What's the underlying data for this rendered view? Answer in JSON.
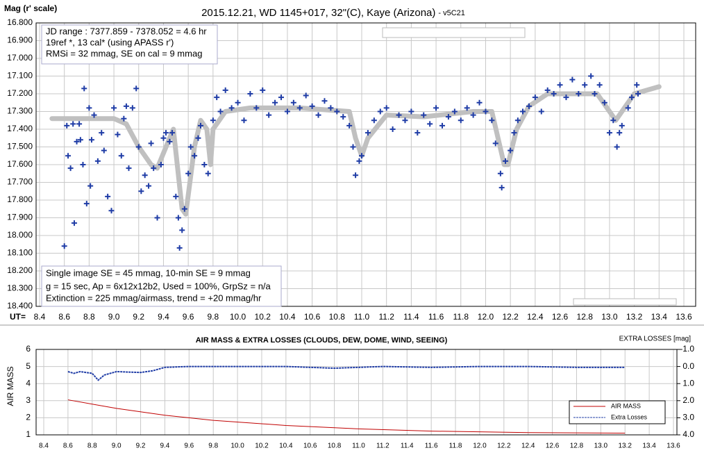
{
  "chart_data": [
    {
      "type": "scatter",
      "title": "2015.12.21, WD 1145+017, 32\"(C), Kaye (Arizona)",
      "title_suffix": "- v5C21",
      "ylabel": "Mag (r' scale)",
      "xlabel": "UT=",
      "annotations": [
        [
          "JD range : 7377.859 - 7378.052 = 4.6 hr",
          " 19ref *, 13 cal* (using APASS r')",
          "RMSi = 32 mmag, SE on cal = 9 mmag"
        ],
        [
          "Single image SE = 45 mmag, 10-min SE = 9 mmag",
          "g = 15 sec, Ap = 6x12x12b2, Used = 100%, GrpSz = n/a",
          "Extinction = 225 mmag/airmass, trend = +20 mmag/hr"
        ]
      ],
      "xlim": [
        8.4,
        13.6
      ],
      "ylim": [
        16.8,
        18.4
      ],
      "y_inverted": true,
      "grid": true,
      "xticks": [
        8.4,
        8.6,
        8.8,
        {
          "value": 9,
          "label": "9.0"
        },
        9.2,
        9.4,
        9.6,
        9.8,
        {
          "value": 10,
          "label": "10.0"
        },
        10.2,
        10.4,
        10.6,
        10.8,
        {
          "value": 11,
          "label": "11.0"
        },
        11.2,
        11.4,
        11.6,
        11.8,
        {
          "value": 12,
          "label": "12.0"
        },
        12.2,
        12.4,
        12.6,
        12.8,
        {
          "value": 13,
          "label": "13.0"
        },
        13.2,
        13.4,
        13.6
      ],
      "yticks": [
        {
          "value": 16.8,
          "label": "16.800"
        },
        {
          "value": 16.9,
          "label": "16.900"
        },
        {
          "value": 17,
          "label": "17.000"
        },
        {
          "value": 17.1,
          "label": "17.100"
        },
        {
          "value": 17.2,
          "label": "17.200"
        },
        {
          "value": 17.3,
          "label": "17.300"
        },
        {
          "value": 17.4,
          "label": "17.400"
        },
        {
          "value": 17.5,
          "label": "17.500"
        },
        {
          "value": 17.6,
          "label": "17.600"
        },
        {
          "value": 17.7,
          "label": "17.700"
        },
        {
          "value": 17.8,
          "label": "17.800"
        },
        {
          "value": 17.9,
          "label": "17.900"
        },
        {
          "value": 18,
          "label": "18.000"
        },
        {
          "value": 18.1,
          "label": "18.100"
        },
        {
          "value": 18.2,
          "label": "18.200"
        },
        {
          "value": 18.3,
          "label": "18.300"
        },
        {
          "value": 18.4,
          "label": "18.400"
        }
      ],
      "points": {
        "color": "#1f3ca6",
        "x": [
          8.6,
          8.62,
          8.63,
          8.65,
          8.67,
          8.68,
          8.7,
          8.72,
          8.73,
          8.75,
          8.76,
          8.78,
          8.8,
          8.81,
          8.82,
          8.84,
          8.87,
          8.9,
          8.92,
          8.95,
          8.98,
          9.0,
          9.03,
          9.06,
          9.08,
          9.1,
          9.12,
          9.15,
          9.18,
          9.2,
          9.22,
          9.25,
          9.28,
          9.3,
          9.32,
          9.35,
          9.38,
          9.4,
          9.42,
          9.45,
          9.47,
          9.5,
          9.52,
          9.53,
          9.55,
          9.57,
          9.6,
          9.62,
          9.65,
          9.68,
          9.7,
          9.73,
          9.76,
          9.8,
          9.83,
          9.86,
          9.9,
          9.95,
          10.0,
          10.05,
          10.1,
          10.15,
          10.2,
          10.25,
          10.3,
          10.35,
          10.4,
          10.45,
          10.5,
          10.55,
          10.6,
          10.65,
          10.7,
          10.75,
          10.8,
          10.85,
          10.9,
          10.93,
          10.95,
          10.98,
          11.0,
          11.05,
          11.1,
          11.15,
          11.2,
          11.25,
          11.3,
          11.35,
          11.4,
          11.45,
          11.5,
          11.55,
          11.6,
          11.65,
          11.7,
          11.75,
          11.8,
          11.85,
          11.9,
          11.95,
          12.0,
          12.05,
          12.08,
          12.12,
          12.13,
          12.16,
          12.2,
          12.23,
          12.26,
          12.3,
          12.35,
          12.4,
          12.45,
          12.5,
          12.55,
          12.6,
          12.65,
          12.7,
          12.75,
          12.8,
          12.85,
          12.88,
          12.92,
          12.96,
          13.0,
          13.03,
          13.06,
          13.08,
          13.1,
          13.15,
          13.18,
          13.22,
          13.23
        ],
        "y": [
          18.06,
          17.38,
          17.55,
          17.62,
          17.37,
          17.93,
          17.47,
          17.37,
          17.46,
          17.6,
          17.17,
          17.82,
          17.28,
          17.72,
          17.46,
          17.32,
          17.58,
          17.42,
          17.52,
          17.78,
          17.86,
          17.28,
          17.43,
          17.55,
          17.34,
          17.27,
          17.62,
          17.28,
          17.17,
          17.5,
          17.75,
          17.66,
          17.72,
          17.48,
          17.62,
          17.9,
          17.6,
          17.45,
          17.42,
          17.47,
          17.42,
          17.78,
          17.9,
          18.07,
          17.97,
          17.85,
          17.65,
          17.5,
          17.55,
          17.45,
          17.38,
          17.6,
          17.65,
          17.35,
          17.22,
          17.3,
          17.18,
          17.28,
          17.25,
          17.35,
          17.2,
          17.28,
          17.18,
          17.32,
          17.25,
          17.22,
          17.3,
          17.25,
          17.28,
          17.21,
          17.27,
          17.32,
          17.24,
          17.28,
          17.3,
          17.33,
          17.38,
          17.5,
          17.66,
          17.58,
          17.55,
          17.42,
          17.35,
          17.3,
          17.28,
          17.4,
          17.32,
          17.35,
          17.3,
          17.42,
          17.32,
          17.37,
          17.28,
          17.38,
          17.33,
          17.3,
          17.35,
          17.28,
          17.32,
          17.25,
          17.3,
          17.35,
          17.48,
          17.65,
          17.73,
          17.58,
          17.52,
          17.42,
          17.35,
          17.3,
          17.27,
          17.22,
          17.3,
          17.18,
          17.2,
          17.15,
          17.22,
          17.12,
          17.2,
          17.15,
          17.1,
          17.2,
          17.15,
          17.25,
          17.42,
          17.35,
          17.5,
          17.42,
          17.38,
          17.28,
          17.22,
          17.15,
          17.2
        ]
      },
      "model": {
        "color": "#c0c0c0",
        "x": [
          8.5,
          9.0,
          9.1,
          9.2,
          9.3,
          9.35,
          9.45,
          9.48,
          9.55,
          9.58,
          9.65,
          9.7,
          9.75,
          9.78,
          9.8,
          9.9,
          10.1,
          10.5,
          10.9,
          10.95,
          11.0,
          11.05,
          11.2,
          11.5,
          11.9,
          12.05,
          12.15,
          12.18,
          12.25,
          12.35,
          12.5,
          12.8,
          12.9,
          13.0,
          13.05,
          13.1,
          13.2,
          13.4
        ],
        "y": [
          17.34,
          17.34,
          17.37,
          17.5,
          17.6,
          17.62,
          17.45,
          17.4,
          17.85,
          17.88,
          17.5,
          17.35,
          17.4,
          17.6,
          17.4,
          17.3,
          17.28,
          17.28,
          17.3,
          17.45,
          17.55,
          17.45,
          17.32,
          17.33,
          17.3,
          17.3,
          17.6,
          17.6,
          17.4,
          17.27,
          17.2,
          17.2,
          17.2,
          17.3,
          17.35,
          17.3,
          17.2,
          17.16
        ]
      }
    },
    {
      "type": "line",
      "title": "AIR MASS & EXTRA LOSSES (CLOUDS, DEW, DOME, WIND, SEEING)",
      "ylabel": "AIR MASS",
      "y2label": "EXTRA LOSSES [mag]",
      "xlim": [
        8.4,
        13.6
      ],
      "ylim": [
        1,
        6
      ],
      "y2lim": [
        -1,
        4
      ],
      "y2_inverted": true,
      "grid": true,
      "legend": "lower right",
      "xticks": [
        8.4,
        8.6,
        8.8,
        {
          "value": 9,
          "label": "9.0"
        },
        9.2,
        9.4,
        9.6,
        9.8,
        {
          "value": 10,
          "label": "10.0"
        },
        10.2,
        10.4,
        10.6,
        10.8,
        {
          "value": 11,
          "label": "11.0"
        },
        11.2,
        11.4,
        11.6,
        11.8,
        {
          "value": 12,
          "label": "12.0"
        },
        12.2,
        12.4,
        12.6,
        12.8,
        {
          "value": 13,
          "label": "13.0"
        },
        13.2,
        13.4,
        13.6
      ],
      "yticks": [
        1,
        2,
        3,
        4,
        5,
        6
      ],
      "y2ticks": [
        {
          "value": -1,
          "label": "-1.0"
        },
        {
          "value": 0,
          "label": "0.0"
        },
        {
          "value": 1,
          "label": "1.0"
        },
        {
          "value": 2,
          "label": "2.0"
        },
        {
          "value": 3,
          "label": "3.0"
        },
        {
          "value": 4,
          "label": "4.0"
        }
      ],
      "series": [
        {
          "name": "AIR MASS",
          "color": "#c00000",
          "x": [
            8.6,
            9.0,
            9.4,
            9.8,
            10.4,
            11.0,
            11.6,
            12.4,
            13.2
          ],
          "values": [
            3.05,
            2.55,
            2.15,
            1.85,
            1.55,
            1.35,
            1.22,
            1.13,
            1.1
          ]
        },
        {
          "name": "Extra Losses",
          "color": "#1f3ca6",
          "axis": "y2",
          "x": [
            8.6,
            8.65,
            8.7,
            8.8,
            8.85,
            8.9,
            9.0,
            9.2,
            9.3,
            9.4,
            9.6,
            10.0,
            10.4,
            10.8,
            11.2,
            11.6,
            12.0,
            12.4,
            12.8,
            13.2
          ],
          "values": [
            0.3,
            0.4,
            0.3,
            0.4,
            0.8,
            0.5,
            0.3,
            0.35,
            0.25,
            0.05,
            0.0,
            0.0,
            0.0,
            0.1,
            0.0,
            0.05,
            0.0,
            0.0,
            0.05,
            0.05
          ]
        }
      ]
    }
  ]
}
